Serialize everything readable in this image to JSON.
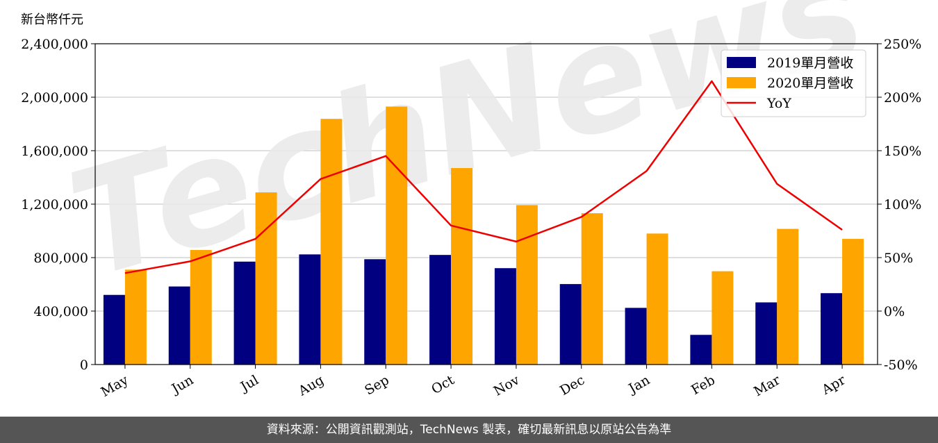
{
  "unit_label": "新台幣仟元",
  "footer": "資料來源：公開資訊觀測站，TechNews 製表，確切最新訊息以原站公告為準",
  "watermark": "TechNews",
  "chart_data": {
    "type": "bar",
    "categories": [
      "May",
      "Jun",
      "Jul",
      "Aug",
      "Sep",
      "Oct",
      "Nov",
      "Dec",
      "Jan",
      "Feb",
      "Mar",
      "Apr"
    ],
    "series": [
      {
        "name": "2019單月營收",
        "kind": "bar",
        "color": "#000080",
        "values": [
          521000,
          584000,
          770000,
          824000,
          788000,
          820000,
          721000,
          602000,
          424000,
          222000,
          465000,
          534000
        ]
      },
      {
        "name": "2020單月營收",
        "kind": "bar",
        "color": "#FFA500",
        "values": [
          710000,
          857000,
          1288000,
          1838000,
          1930000,
          1470000,
          1193000,
          1132000,
          980000,
          698000,
          1015000,
          940000
        ]
      },
      {
        "name": "YoY",
        "kind": "line",
        "axis": "right",
        "color": "#EE0000",
        "values": [
          35.5,
          46.5,
          67.5,
          123.5,
          145.0,
          80.0,
          65.0,
          88.0,
          131.0,
          215.0,
          119.0,
          76.0
        ]
      }
    ],
    "ylim": [
      0,
      2400000
    ],
    "yticks": [
      "0",
      "400,000",
      "800,000",
      "1,200,000",
      "1,600,000",
      "2,000,000",
      "2,400,000"
    ],
    "y2lim": [
      -50,
      250
    ],
    "y2ticks": [
      "-50%",
      "0%",
      "50%",
      "100%",
      "150%",
      "200%",
      "250%"
    ],
    "grid": "horizontal",
    "legend_position": "top-right",
    "legend": [
      "2019單月營收",
      "2020單月營收",
      "YoY"
    ]
  }
}
